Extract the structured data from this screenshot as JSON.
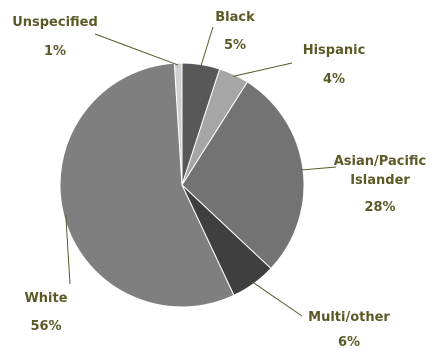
{
  "chart_data": {
    "type": "pie",
    "title": "",
    "start_angle_deg": 0,
    "direction": "clockwise",
    "slices": [
      {
        "label": "Black",
        "value": 5,
        "value_label": "5%",
        "color": "#585858"
      },
      {
        "label": "Hispanic",
        "value": 4,
        "value_label": "4%",
        "color": "#a6a6a6"
      },
      {
        "label": "Asian/Pacific Islander",
        "label_lines": [
          "Asian/Pacific",
          "Islander"
        ],
        "value": 28,
        "value_label": "28%",
        "color": "#737373"
      },
      {
        "label": "Multi/other",
        "value": 6,
        "value_label": "6%",
        "color": "#3f3f3f"
      },
      {
        "label": "White",
        "value": 56,
        "value_label": "56%",
        "color": "#7f7f7f"
      },
      {
        "label": "Unspecified",
        "value": 1,
        "value_label": "1%",
        "color": "#d0d0d0"
      }
    ],
    "label_color": "#5b5a27"
  }
}
